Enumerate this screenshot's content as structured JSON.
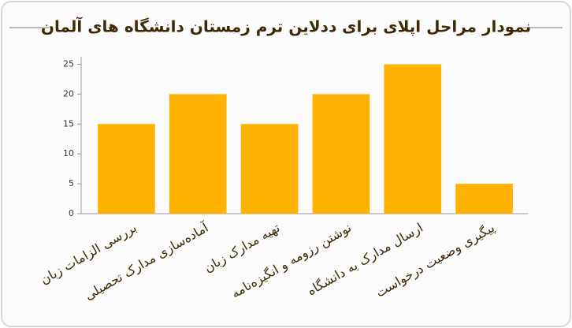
{
  "chart_data": {
    "type": "bar",
    "title": "نمودار مراحل اپلای برای ددلاین ترم زمستان دانشگاه های آلمان",
    "categories": [
      "بررسی الزامات زبان",
      "آماده‌سازی مدارک تحصیلی",
      "تهیه مدارک زبان",
      "نوشتن رزومه و انگیزه‌نامه",
      "ارسال مدارک به دانشگاه",
      "پیگیری وضعیت درخواست"
    ],
    "values": [
      15,
      20,
      15,
      20,
      25,
      5
    ],
    "color": "#ffb300",
    "ylim": [
      0,
      26.25
    ],
    "yticks": [
      0,
      5,
      10,
      15,
      20,
      25
    ],
    "grid": false
  }
}
